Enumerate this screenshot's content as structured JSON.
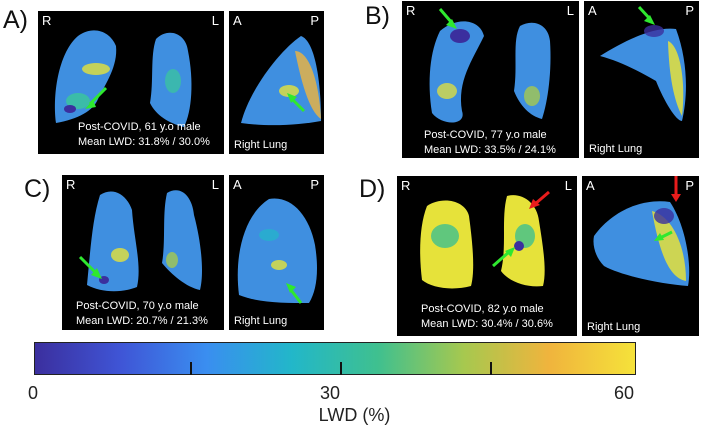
{
  "panels": [
    {
      "letter": "A)",
      "left": "R",
      "right": "L",
      "ant": "A",
      "post": "P",
      "caption_line1": "Post-COVID, 61 y.o male",
      "caption_line2": "Mean LWD: 31.8% / 30.0%",
      "side_label": "Right Lung"
    },
    {
      "letter": "B)",
      "left": "R",
      "right": "L",
      "ant": "A",
      "post": "P",
      "caption_line1": "Post-COVID, 77 y.o male",
      "caption_line2": "Mean LWD: 33.5% / 24.1%",
      "side_label": "Right Lung"
    },
    {
      "letter": "C)",
      "left": "R",
      "right": "L",
      "ant": "A",
      "post": "P",
      "caption_line1": "Post-COVID, 70 y.o male",
      "caption_line2": "Mean LWD: 20.7% / 21.3%",
      "side_label": "Right Lung"
    },
    {
      "letter": "D)",
      "left": "R",
      "right": "L",
      "ant": "A",
      "post": "P",
      "caption_line1": "Post-COVID, 82 y.o male",
      "caption_line2": "Mean LWD: 30.4% / 30.6%",
      "side_label": "Right Lung"
    }
  ],
  "colorbar": {
    "min_label": "0",
    "mid_label": "30",
    "max_label": "60",
    "axis_label": "LWD (%)",
    "colors": [
      "#3b2f9e",
      "#3f55d6",
      "#3a8ef0",
      "#22b7c9",
      "#3fc08f",
      "#a6c84f",
      "#f0b43d",
      "#f5e23a"
    ]
  },
  "colors": {
    "arrow_green": "#2fe82f",
    "arrow_red": "#e81c1c",
    "lung_base": "#3f8fe0",
    "lung_highlight": "#e6e23a"
  }
}
